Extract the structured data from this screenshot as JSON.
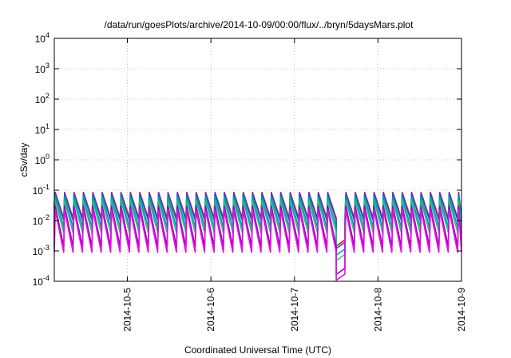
{
  "chart_data": {
    "type": "line",
    "title": "/data/run/goesPlots/archive/2014-10-09/00:00/flux/../bryn/5daysMars.plot",
    "xlabel": "Coordinated Universal Time (UTC)",
    "ylabel": "cSv/day",
    "y_scale": "log",
    "ylim": [
      0.0001,
      10000
    ],
    "y_ticks": [
      {
        "value": 0.0001,
        "base": "10",
        "exp": "-4"
      },
      {
        "value": 0.001,
        "base": "10",
        "exp": "-3"
      },
      {
        "value": 0.01,
        "base": "10",
        "exp": "-2"
      },
      {
        "value": 0.1,
        "base": "10",
        "exp": "-1"
      },
      {
        "value": 1,
        "base": "10",
        "exp": "0"
      },
      {
        "value": 10,
        "base": "10",
        "exp": "1"
      },
      {
        "value": 100,
        "base": "10",
        "exp": "2"
      },
      {
        "value": 1000,
        "base": "10",
        "exp": "3"
      },
      {
        "value": 10000,
        "base": "10",
        "exp": "4"
      }
    ],
    "xlim": [
      "2014-10-04T03:00",
      "2014-10-09T00:00"
    ],
    "x_ticks": [
      "2014-10-5",
      "2014-10-6",
      "2014-10-7",
      "2014-10-8",
      "2014-10-9"
    ],
    "grid": true,
    "legend": "none",
    "pattern": {
      "description_source": "sawtooth dose curves; sharp rise at each orbit pass, exponential decay between",
      "period_hours": 2.7,
      "gap": [
        "2014-10-07T09:30",
        "2014-10-07T14:30"
      ]
    },
    "series": [
      {
        "color": "#e01010",
        "peak": 0.085,
        "trough": 0.012
      },
      {
        "color": "#2050e0",
        "peak": 0.08,
        "trough": 0.01
      },
      {
        "color": "#00a0a0",
        "peak": 0.06,
        "trough": 0.006
      },
      {
        "color": "#20c080",
        "peak": 0.045,
        "trough": 0.004
      },
      {
        "color": "#a000c0",
        "peak": 0.03,
        "trough": 0.0014
      },
      {
        "color": "#e010e0",
        "peak": 0.022,
        "trough": 0.0009
      }
    ]
  }
}
